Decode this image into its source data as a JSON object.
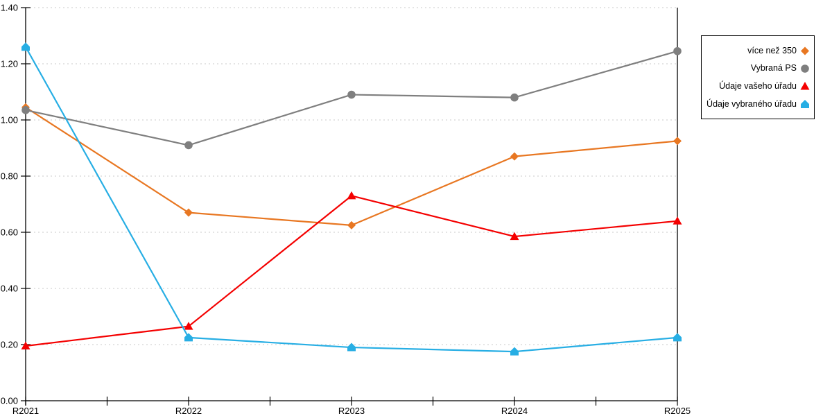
{
  "chart_data": {
    "type": "line",
    "title": "",
    "xlabel": "",
    "ylabel": "",
    "categories": [
      "R2021",
      "R2022",
      "R2023",
      "R2024",
      "R2025"
    ],
    "series": [
      {
        "name": "více než 350",
        "marker": "diamond",
        "color": "#E87722",
        "values": [
          1.045,
          0.67,
          0.625,
          0.87,
          0.925
        ]
      },
      {
        "name": "Vybraná PS",
        "marker": "circle",
        "color": "#7F7F7F",
        "values": [
          1.035,
          0.91,
          1.09,
          1.08,
          1.245
        ]
      },
      {
        "name": "Údaje vašeho úřadu",
        "marker": "triangle",
        "color": "#F40000",
        "values": [
          0.195,
          0.265,
          0.73,
          0.585,
          0.64
        ]
      },
      {
        "name": "Údaje vybraného úřadu",
        "marker": "pentagon",
        "color": "#27AEE4",
        "values": [
          1.26,
          0.225,
          0.19,
          0.175,
          0.225
        ]
      }
    ],
    "ylim": [
      0.0,
      1.4
    ],
    "ytick_step": 0.2,
    "ytick_labels": [
      "0.00",
      "0.20",
      "0.40",
      "0.60",
      "0.80",
      "1.00",
      "1.20",
      "1.40"
    ],
    "grid": "horizontal-dashed",
    "minor_x_ticks": true,
    "legend_position": "right",
    "style": {
      "background": "#FFFFFF",
      "axis_color": "#000000",
      "gridline_color": "#C8C8C8",
      "legend_border_color": "#000000",
      "tick_label_color": "#000000"
    }
  }
}
